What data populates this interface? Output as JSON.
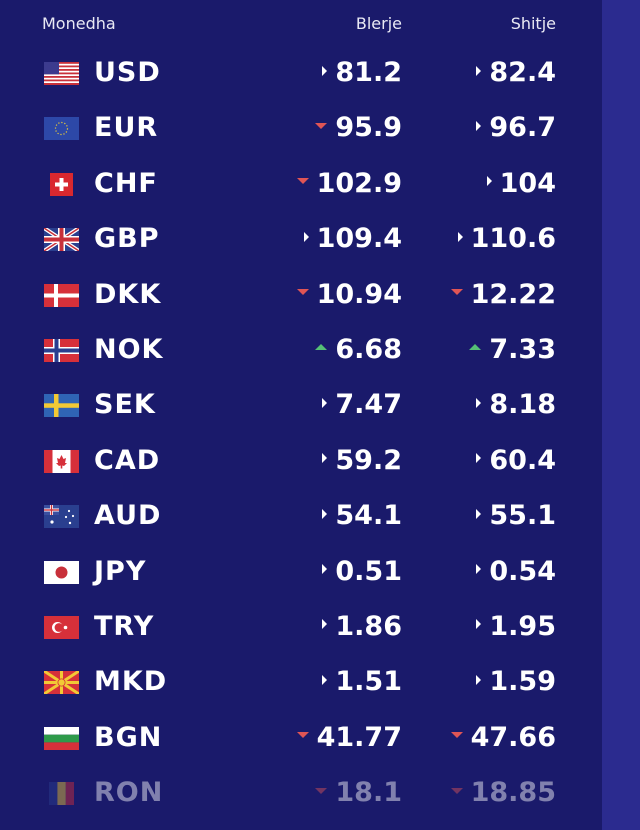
{
  "header": {
    "currency": "Monedha",
    "buy": "Blerje",
    "sell": "Shitje"
  },
  "rows": [
    {
      "code": "USD",
      "buy": "81.2",
      "buy_trend": "flat",
      "sell": "82.4",
      "sell_trend": "flat"
    },
    {
      "code": "EUR",
      "buy": "95.9",
      "buy_trend": "down",
      "sell": "96.7",
      "sell_trend": "flat"
    },
    {
      "code": "CHF",
      "buy": "102.9",
      "buy_trend": "down",
      "sell": "104",
      "sell_trend": "flat"
    },
    {
      "code": "GBP",
      "buy": "109.4",
      "buy_trend": "flat",
      "sell": "110.6",
      "sell_trend": "flat"
    },
    {
      "code": "DKK",
      "buy": "10.94",
      "buy_trend": "down",
      "sell": "12.22",
      "sell_trend": "down"
    },
    {
      "code": "NOK",
      "buy": "6.68",
      "buy_trend": "up",
      "sell": "7.33",
      "sell_trend": "up"
    },
    {
      "code": "SEK",
      "buy": "7.47",
      "buy_trend": "flat",
      "sell": "8.18",
      "sell_trend": "flat"
    },
    {
      "code": "CAD",
      "buy": "59.2",
      "buy_trend": "flat",
      "sell": "60.4",
      "sell_trend": "flat"
    },
    {
      "code": "AUD",
      "buy": "54.1",
      "buy_trend": "flat",
      "sell": "55.1",
      "sell_trend": "flat"
    },
    {
      "code": "JPY",
      "buy": "0.51",
      "buy_trend": "flat",
      "sell": "0.54",
      "sell_trend": "flat"
    },
    {
      "code": "TRY",
      "buy": "1.86",
      "buy_trend": "flat",
      "sell": "1.95",
      "sell_trend": "flat"
    },
    {
      "code": "MKD",
      "buy": "1.51",
      "buy_trend": "flat",
      "sell": "1.59",
      "sell_trend": "flat"
    },
    {
      "code": "BGN",
      "buy": "41.77",
      "buy_trend": "down",
      "sell": "47.66",
      "sell_trend": "down"
    },
    {
      "code": "RON",
      "buy": "18.1",
      "buy_trend": "down",
      "sell": "18.85",
      "sell_trend": "down"
    }
  ],
  "colors": {
    "background": "#1a1a6b",
    "sidebar": "#2b2b8f",
    "down": "#e05555",
    "up": "#55c075"
  }
}
